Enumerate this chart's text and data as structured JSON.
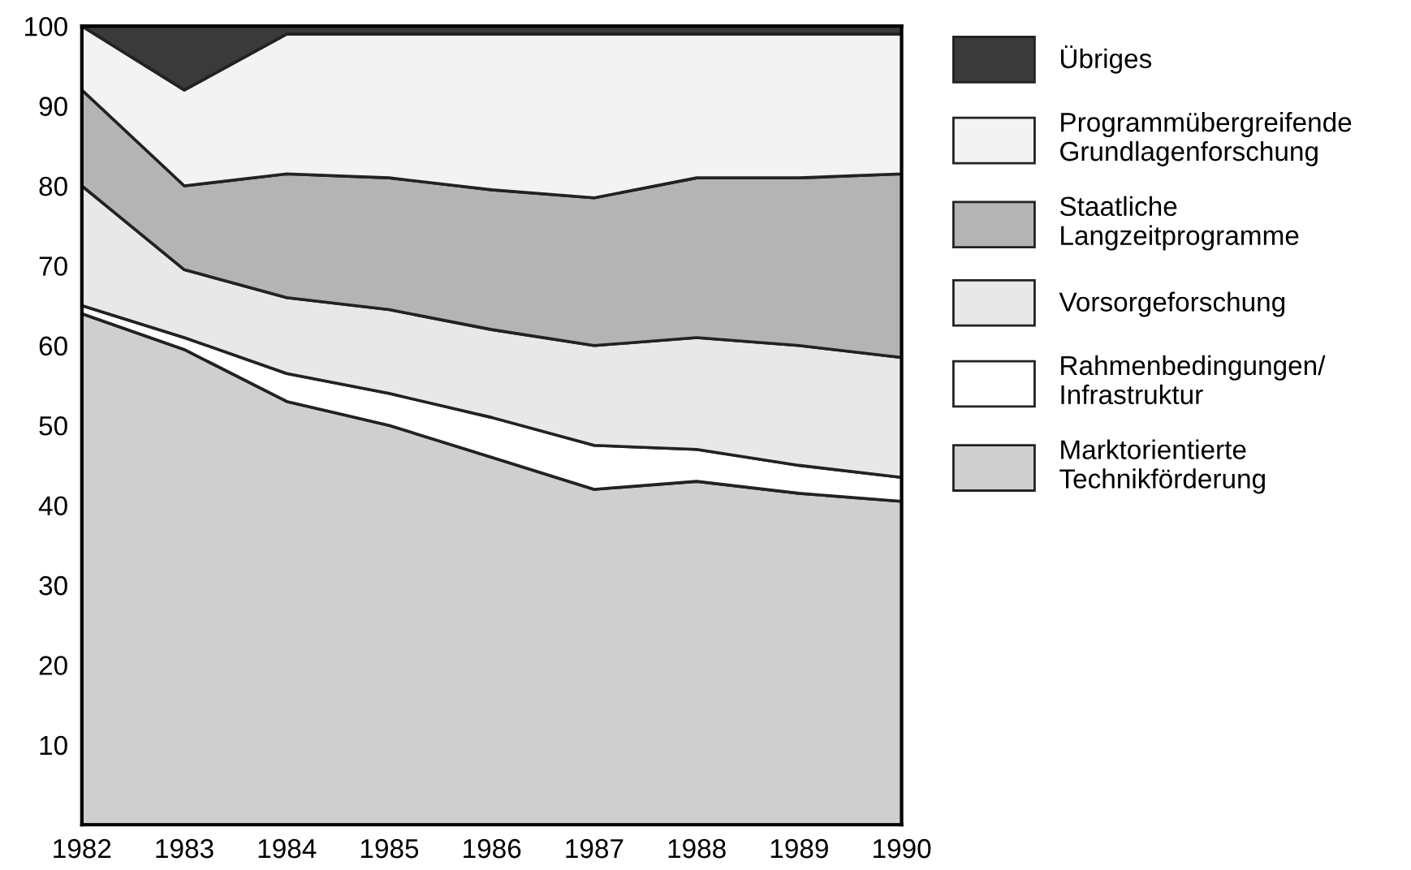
{
  "chart_data": {
    "type": "area",
    "stacked": true,
    "x": [
      1982,
      1983,
      1984,
      1985,
      1986,
      1987,
      1988,
      1989,
      1990
    ],
    "series": [
      {
        "name": "Marktorientierte\nTechnikförderung",
        "color": "#cfcfcf",
        "values": [
          64,
          59.5,
          53,
          50,
          46,
          42,
          43,
          41.5,
          40.5
        ]
      },
      {
        "name": "Rahmenbedingungen/\nInfrastruktur",
        "color": "#ffffff",
        "values": [
          1,
          1.5,
          3.5,
          4,
          5,
          5.5,
          4,
          3.5,
          3
        ]
      },
      {
        "name": "Vorsorgeforschung",
        "color": "#e8e8e8",
        "values": [
          15,
          8.5,
          9.5,
          10.5,
          11,
          12.5,
          14,
          15,
          15
        ]
      },
      {
        "name": "Staatliche\nLangzeitprogramme",
        "color": "#b4b4b4",
        "values": [
          12,
          10.5,
          15.5,
          16.5,
          17.5,
          18.5,
          20,
          21,
          23
        ]
      },
      {
        "name": "Programmübergreifende\nGrundlagenforschung",
        "color": "#f3f3f3",
        "values": [
          8,
          12,
          17.5,
          18,
          19.5,
          20.5,
          18,
          18,
          17.5
        ]
      },
      {
        "name": "Übriges",
        "color": "#3a3a3a",
        "values": [
          0,
          8,
          1,
          1,
          1,
          1,
          1,
          1,
          1
        ]
      }
    ],
    "xlim": [
      1982,
      1990
    ],
    "ylim": [
      0,
      100
    ],
    "xticks": [
      1982,
      1983,
      1984,
      1985,
      1986,
      1987,
      1988,
      1989,
      1990
    ],
    "yticks": [
      10,
      20,
      30,
      40,
      50,
      60,
      70,
      80,
      90,
      100
    ],
    "grid": false,
    "legend": "right"
  }
}
